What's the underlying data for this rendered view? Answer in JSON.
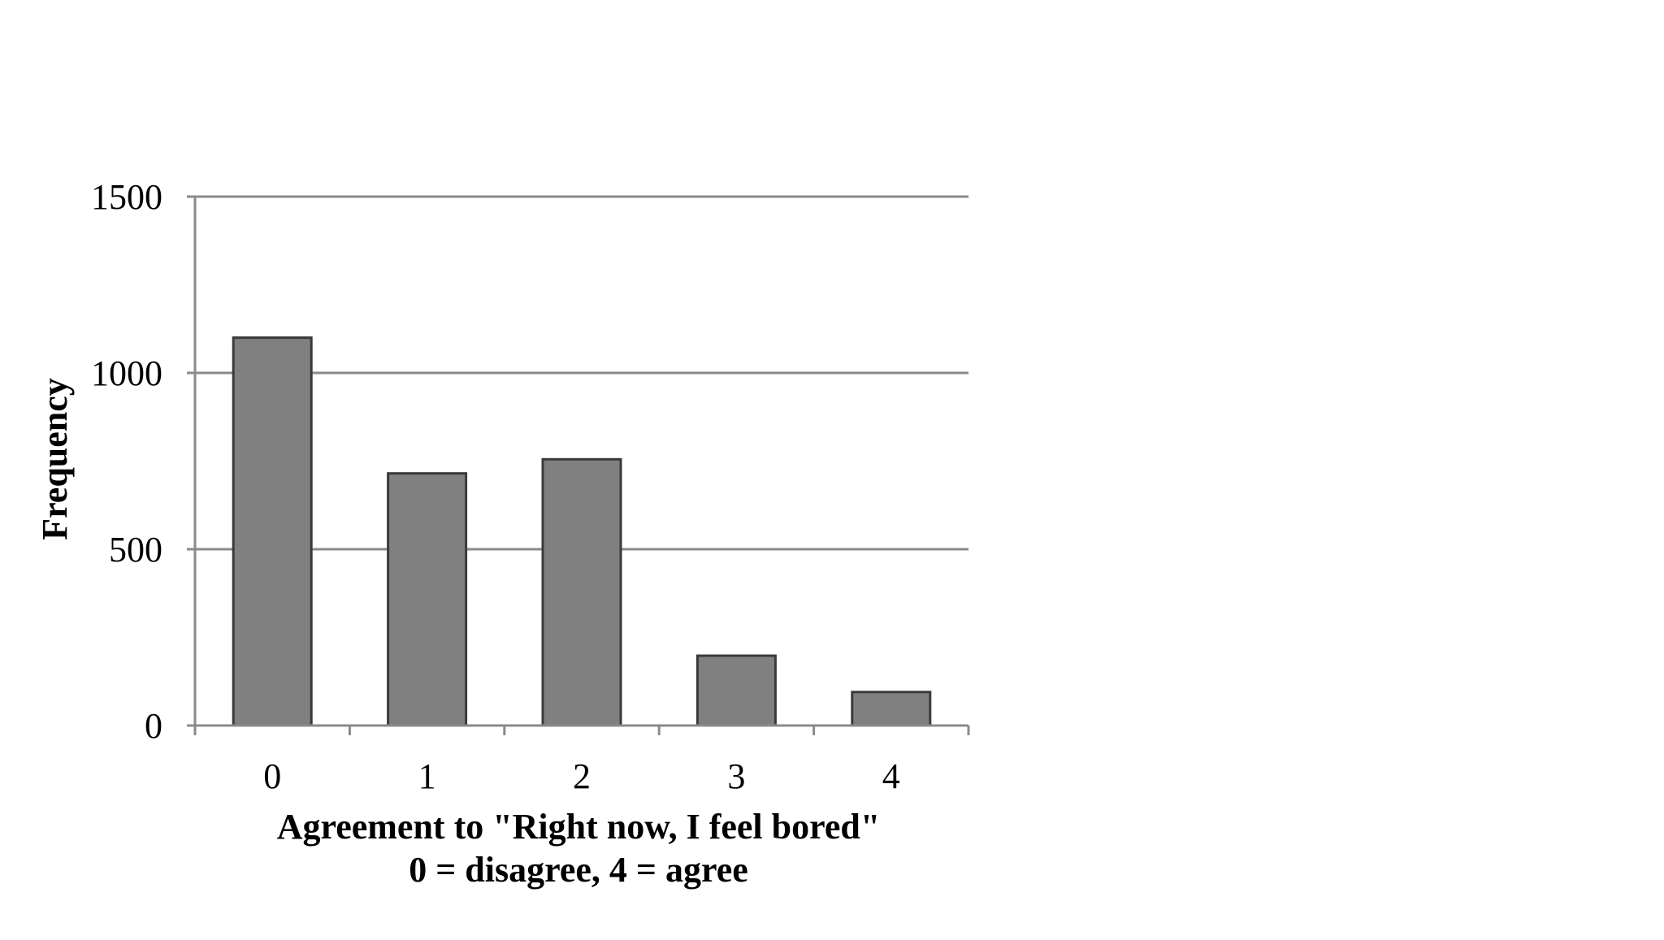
{
  "chart_data": {
    "type": "bar",
    "title": "",
    "categories": [
      "0",
      "1",
      "2",
      "3",
      "4"
    ],
    "values": [
      1100,
      715,
      755,
      198,
      95
    ],
    "xlabel": [
      "Agreement to \"Right now, I feel bored\"",
      "0 = disagree, 4 = agree"
    ],
    "ylabel": "Frequency",
    "ylim": [
      0,
      1500
    ],
    "yticks": [
      "0",
      "500",
      "1000",
      "1500"
    ],
    "grid": true,
    "legend": "none",
    "colors": {
      "bar_fill": "#808080",
      "bar_stroke": "#3a3a3a",
      "grid": "#8a8a8a",
      "axis": "#8a8a8a"
    }
  }
}
